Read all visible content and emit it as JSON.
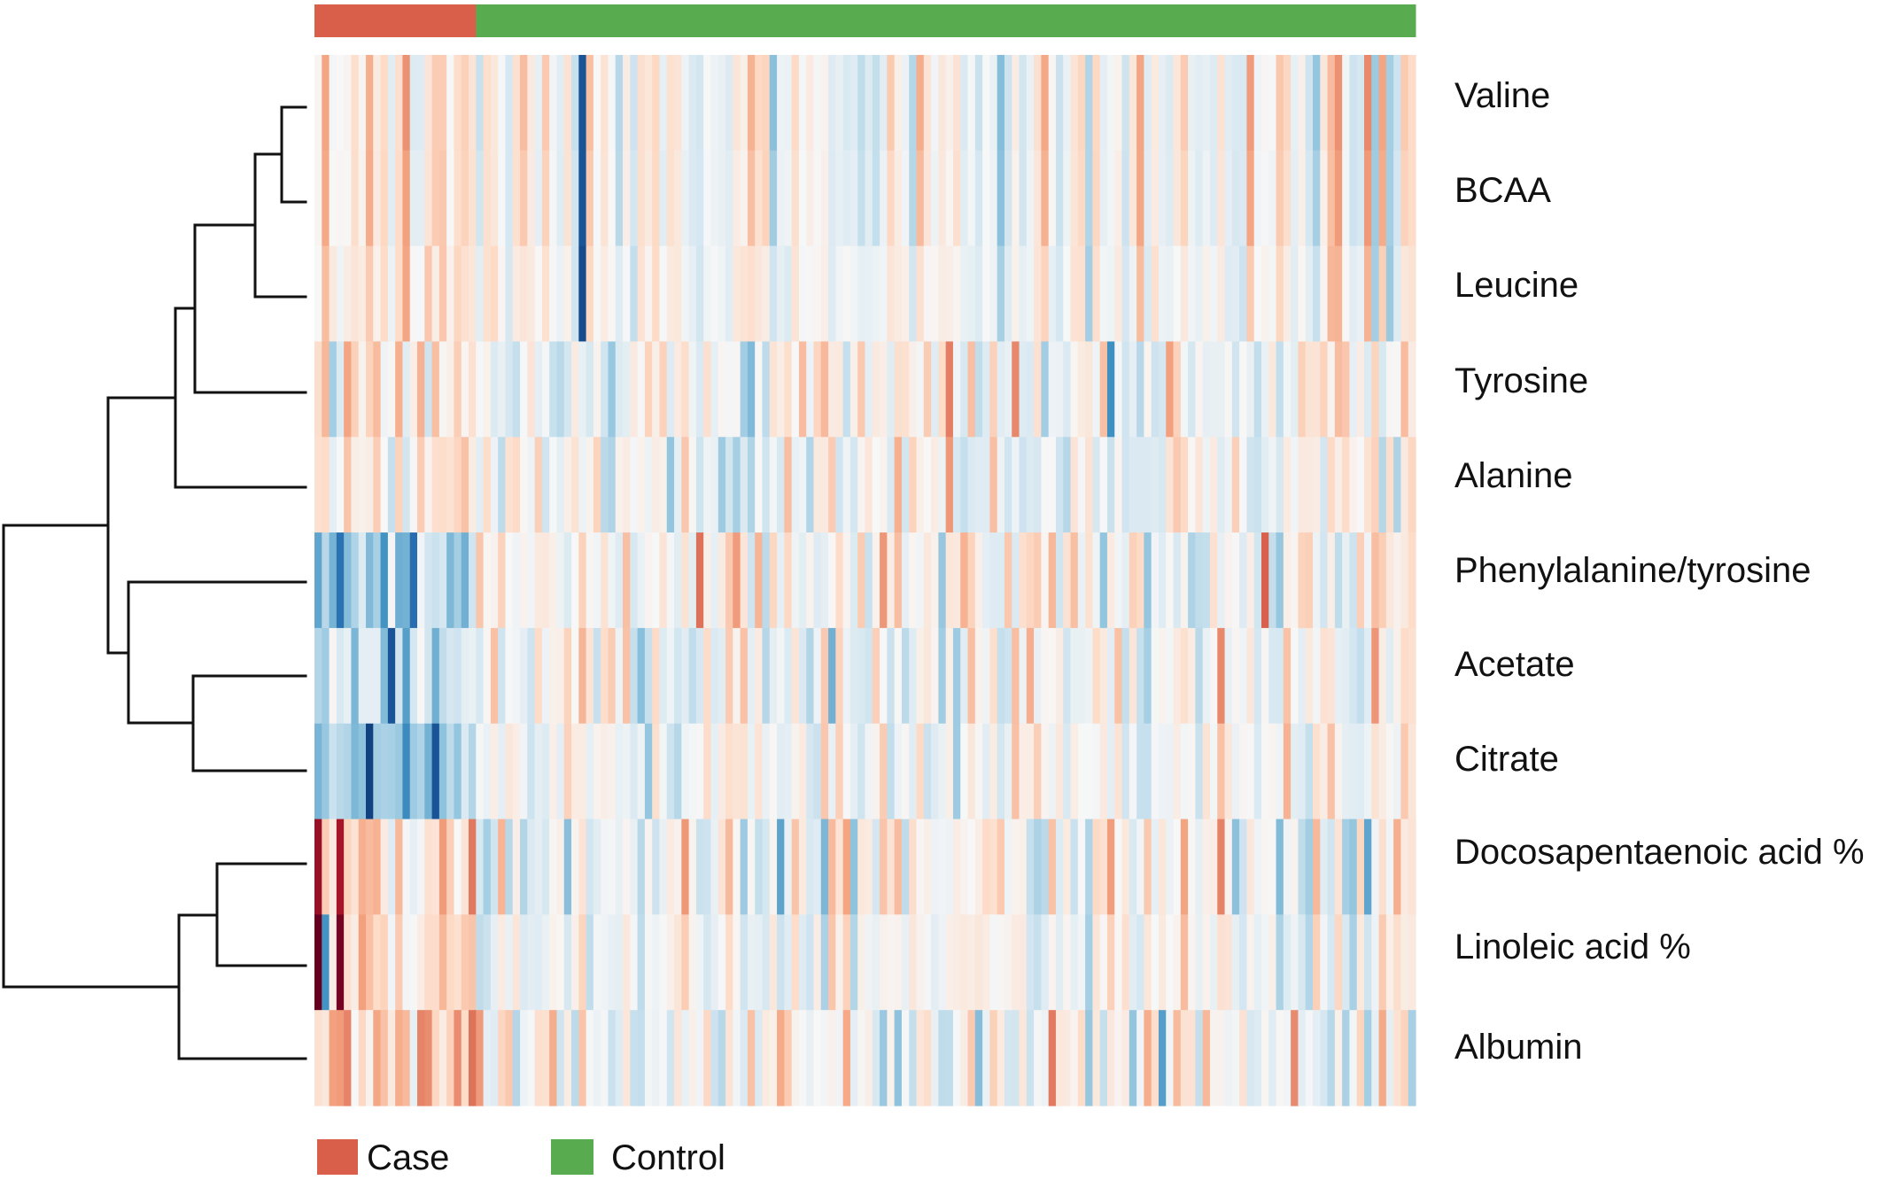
{
  "chart_data": {
    "type": "heatmap",
    "title": "",
    "rows": [
      "Valine",
      "BCAA",
      "Leucine",
      "Tyrosine",
      "Alanine",
      "Phenylalanine/tyrosine",
      "Acetate",
      "Citrate",
      "Docosapentaenoic acid %",
      "Linoleic acid %",
      "Albumin"
    ],
    "row_labels": [
      "Valine",
      "BCAA",
      "Leucine",
      "Tyrosine",
      "Alanine",
      "Phenylalanine/tyrosine",
      "Acetate",
      "Citrate",
      "Docosapentaenoic acid %",
      "Linoleic acid %",
      "Albumin"
    ],
    "groups": [
      {
        "name": "Case",
        "count": 22,
        "color": "#d95f4b"
      },
      {
        "name": "Control",
        "count": 128,
        "color": "#58ab4f"
      }
    ],
    "color_scale": {
      "low": "#08306b",
      "mid": "#f7f7f7",
      "high": "#67001f"
    },
    "value_range": [
      -3,
      3
    ],
    "dendrogram": "rows",
    "legend": {
      "position": "bottom-left",
      "entries": [
        "Case",
        "Control"
      ]
    }
  }
}
